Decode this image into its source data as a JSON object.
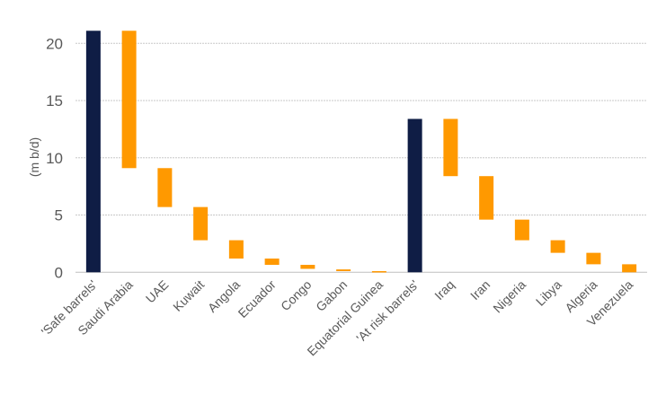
{
  "chart_data": {
    "type": "bar",
    "subtype": "waterfall",
    "title": "",
    "xlabel": "",
    "ylabel": "(m b/d)",
    "ylim": [
      0,
      22
    ],
    "yticks": [
      0,
      5,
      10,
      15,
      20
    ],
    "grid": true,
    "legend": "none",
    "colors": {
      "total": "#0f1d45",
      "change": "#ff9900"
    },
    "categories": [
      "'Safe barrels'",
      "Saudi Arabia",
      "UAE",
      "Kuwait",
      "Angola",
      "Ecuador",
      "Congo",
      "Gabon",
      "Equatorial Guinea",
      "'At risk barrels'",
      "Iraq",
      "Iran",
      "Nigeria",
      "Libya",
      "Algeria",
      "Venezuela"
    ],
    "bars": [
      {
        "kind": "total",
        "low": 0,
        "high": 21.1
      },
      {
        "kind": "change",
        "low": 9.1,
        "high": 21.1
      },
      {
        "kind": "change",
        "low": 5.7,
        "high": 9.1
      },
      {
        "kind": "change",
        "low": 2.8,
        "high": 5.7
      },
      {
        "kind": "change",
        "low": 1.2,
        "high": 2.8
      },
      {
        "kind": "change",
        "low": 0.65,
        "high": 1.2
      },
      {
        "kind": "change",
        "low": 0.3,
        "high": 0.65
      },
      {
        "kind": "change",
        "low": 0.1,
        "high": 0.25
      },
      {
        "kind": "change",
        "low": 0.0,
        "high": 0.1
      },
      {
        "kind": "total",
        "low": 0,
        "high": 13.4
      },
      {
        "kind": "change",
        "low": 8.4,
        "high": 13.4
      },
      {
        "kind": "change",
        "low": 4.6,
        "high": 8.4
      },
      {
        "kind": "change",
        "low": 2.8,
        "high": 4.6
      },
      {
        "kind": "change",
        "low": 1.7,
        "high": 2.8
      },
      {
        "kind": "change",
        "low": 0.7,
        "high": 1.7
      },
      {
        "kind": "change",
        "low": 0.0,
        "high": 0.7
      }
    ]
  }
}
